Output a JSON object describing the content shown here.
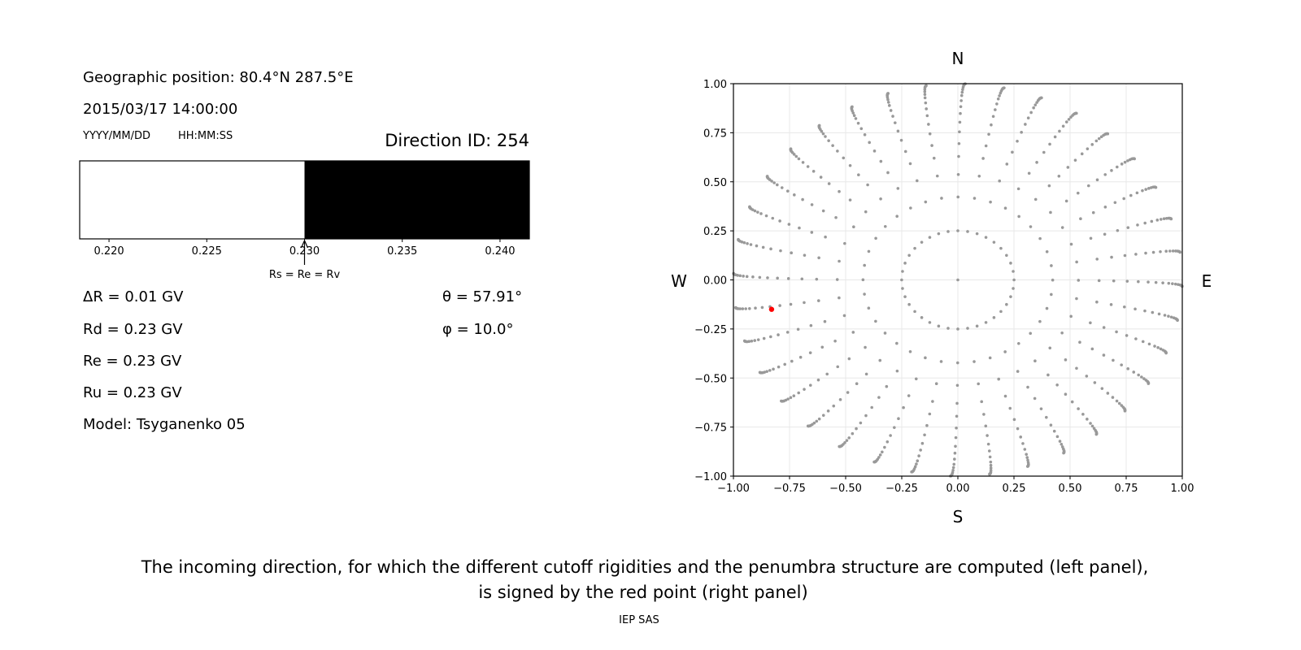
{
  "left_panel": {
    "geo_position": "Geographic position: 80.4°N 287.5°E",
    "datetime": "2015/03/17 14:00:00",
    "date_format": "YYYY/MM/DD",
    "time_format": "HH:MM:SS",
    "direction_id": "Direction ID: 254",
    "delta_r": "ΔR = 0.01 GV",
    "rd": "Rd = 0.23 GV",
    "re": "Re = 0.23 GV",
    "ru": "Ru = 0.23 GV",
    "model": "Model: Tsyganenko 05",
    "theta": "θ = 57.91°",
    "phi": "φ = 10.0°"
  },
  "caption": {
    "line1": "The incoming direction, for which the different cutoff rigidities and the penumbra structure are computed (left panel),",
    "line2": "is signed by the red point (right panel)",
    "credit": "IEP SAS"
  },
  "chart_data": [
    {
      "type": "bar",
      "title": "",
      "xlim": [
        0.2185,
        0.2415
      ],
      "xticks": [
        "0.220",
        "0.225",
        "0.230",
        "0.235",
        "0.240"
      ],
      "segments": [
        {
          "from": 0.2185,
          "to": 0.23,
          "color": "#ffffff"
        },
        {
          "from": 0.23,
          "to": 0.2415,
          "color": "#000000"
        }
      ],
      "annotation": {
        "x": 0.23,
        "text": "Rs = Re = Rv"
      }
    },
    {
      "type": "scatter",
      "xlim": [
        -1,
        1
      ],
      "ylim": [
        -1,
        1
      ],
      "xticks": [
        "−1.00",
        "−0.75",
        "−0.50",
        "−0.25",
        "0.00",
        "0.25",
        "0.50",
        "0.75",
        "1.00"
      ],
      "yticks": [
        "−1.00",
        "−0.75",
        "−0.50",
        "−0.25",
        "0.00",
        "0.25",
        "0.50",
        "0.75",
        "1.00"
      ],
      "grid": true,
      "compass": {
        "north": "N",
        "south": "S",
        "west": "W",
        "east": "E"
      },
      "grid_points": {
        "color": "#999999",
        "azimuth_step_deg": 10,
        "zenith_deg": [
          14.5,
          25,
          32.5,
          39,
          44,
          49,
          53.5,
          58,
          62,
          66,
          70,
          73,
          76,
          79,
          82,
          84,
          86,
          88,
          90
        ],
        "center_point": [
          0,
          0
        ]
      },
      "highlight_point": {
        "x": -0.83,
        "y": -0.15,
        "color": "#ff0000"
      }
    }
  ]
}
